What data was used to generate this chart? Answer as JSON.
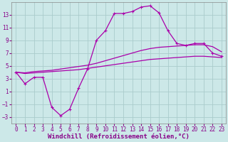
{
  "xlabel": "Windchill (Refroidissement éolien,°C)",
  "ylabel": "",
  "background_color": "#cce8e8",
  "grid_color": "#aacccc",
  "line_color": "#aa00aa",
  "x_hours": [
    0,
    1,
    2,
    3,
    4,
    5,
    6,
    7,
    8,
    9,
    10,
    11,
    12,
    13,
    14,
    15,
    16,
    17,
    18,
    19,
    20,
    21,
    22,
    23
  ],
  "y_windchill": [
    4,
    2.2,
    3.2,
    3.2,
    -1.5,
    -2.8,
    -1.8,
    1.5,
    4.5,
    9,
    10.5,
    13.2,
    13.2,
    13.5,
    14.2,
    14.4,
    13.3,
    10.5,
    8.5,
    8.2,
    8.5,
    8.5,
    7.0,
    6.5
  ],
  "y_smooth1": [
    4.0,
    3.8,
    3.9,
    4.0,
    4.1,
    4.2,
    4.3,
    4.4,
    4.6,
    4.8,
    5.0,
    5.2,
    5.4,
    5.6,
    5.8,
    6.0,
    6.1,
    6.2,
    6.3,
    6.4,
    6.5,
    6.5,
    6.4,
    6.3
  ],
  "y_smooth2": [
    4.0,
    3.9,
    4.1,
    4.2,
    4.3,
    4.5,
    4.7,
    4.9,
    5.1,
    5.4,
    5.8,
    6.2,
    6.6,
    7.0,
    7.4,
    7.7,
    7.9,
    8.0,
    8.1,
    8.2,
    8.3,
    8.3,
    8.0,
    7.2
  ],
  "ylim": [
    -4,
    15
  ],
  "xlim": [
    -0.5,
    23.5
  ],
  "yticks": [
    -3,
    -1,
    1,
    3,
    5,
    7,
    9,
    11,
    13
  ],
  "xticks": [
    0,
    1,
    2,
    3,
    4,
    5,
    6,
    7,
    8,
    9,
    10,
    11,
    12,
    13,
    14,
    15,
    16,
    17,
    18,
    19,
    20,
    21,
    22,
    23
  ],
  "tick_fontsize": 5.5,
  "xlabel_fontsize": 6.5
}
